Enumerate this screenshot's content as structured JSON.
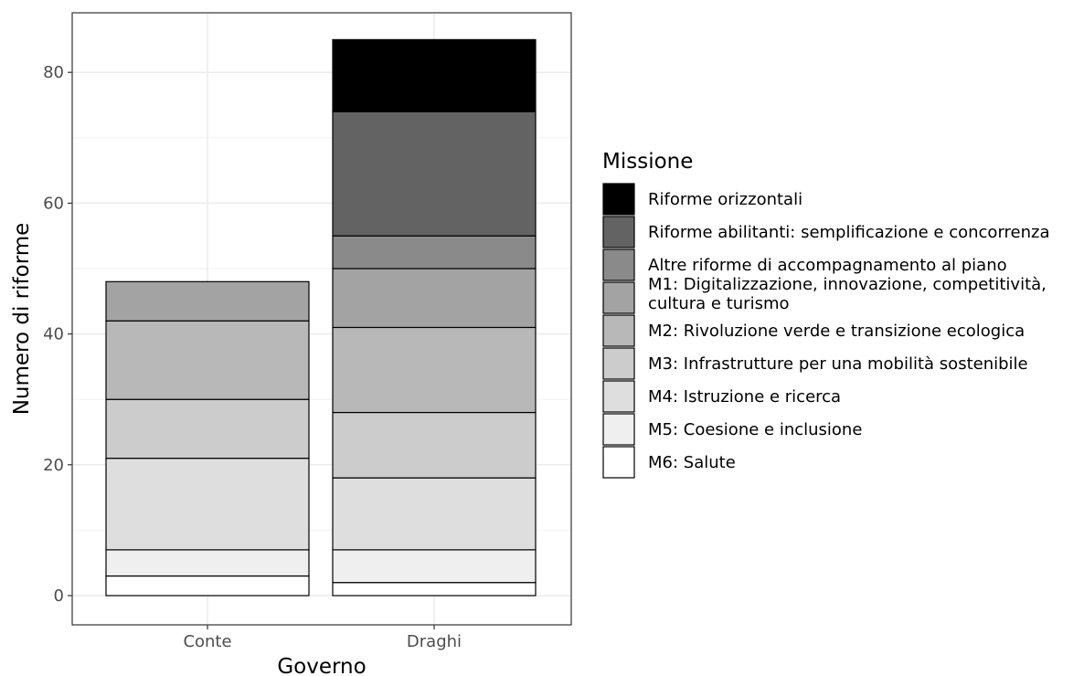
{
  "chart_data": {
    "type": "bar",
    "stacked": true,
    "xlabel": "Governo",
    "ylabel": "Numero di riforme",
    "categories": [
      "Conte",
      "Draghi"
    ],
    "ylim": [
      0,
      85
    ],
    "yticks": [
      0,
      20,
      40,
      60,
      80
    ],
    "grid": true,
    "legend": {
      "title": "Missione",
      "position": "right"
    },
    "series": [
      {
        "name": "M6: Salute",
        "color": "#ffffff",
        "values": [
          3,
          2
        ]
      },
      {
        "name": "M5: Coesione e inclusione",
        "color": "#efefef",
        "values": [
          4,
          5
        ]
      },
      {
        "name": "M4: Istruzione e ricerca",
        "color": "#dedede",
        "values": [
          14,
          11
        ]
      },
      {
        "name": "M3: Infrastrutture per una mobilità sostenibile",
        "color": "#cccccc",
        "values": [
          9,
          10
        ]
      },
      {
        "name": "M2: Rivoluzione verde e transizione ecologica",
        "color": "#b8b8b8",
        "values": [
          12,
          13
        ]
      },
      {
        "name": "M1: Digitalizzazione, innovazione, competitività, cultura e turismo",
        "legend_lines": [
          "M1: Digitalizzazione, innovazione, competitività,",
          "cultura e turismo"
        ],
        "color": "#a3a3a3",
        "values": [
          6,
          9
        ]
      },
      {
        "name": "Altre riforme di accompagnamento al piano",
        "color": "#8a8a8a",
        "values": [
          0,
          5
        ]
      },
      {
        "name": "Riforme abilitanti: semplificazione e concorrenza",
        "color": "#636363",
        "values": [
          0,
          19
        ]
      },
      {
        "name": "Riforme orizzontali",
        "color": "#000000",
        "values": [
          0,
          11
        ]
      }
    ]
  }
}
